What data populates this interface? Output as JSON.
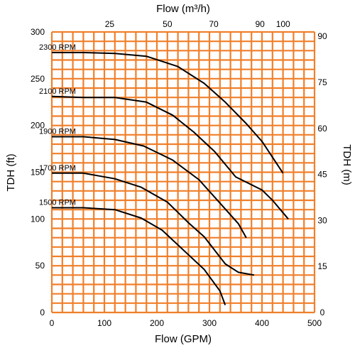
{
  "chart_data": {
    "type": "line",
    "title": "",
    "xlabel": "Flow (GPM)",
    "ylabel": "TDH (ft)",
    "x2label": "Flow (m³/h)",
    "y2label": "TDH (m)",
    "xlim": [
      0,
      500
    ],
    "ylim": [
      0,
      300
    ],
    "x2lim": [
      0,
      113.6
    ],
    "y2lim": [
      0,
      91.44
    ],
    "grid": true,
    "grid_color": "#f07f2a",
    "line_color": "#000000",
    "x_ticks": [
      "0",
      "100",
      "200",
      "300",
      "400",
      "500"
    ],
    "y_ticks": [
      "0",
      "50",
      "100",
      "150",
      "200",
      "250",
      "300"
    ],
    "x2_ticks": [
      {
        "value": 25,
        "label": "25"
      },
      {
        "value": 50,
        "label": "50"
      },
      {
        "value": 70,
        "label": "70"
      },
      {
        "value": 90,
        "label": "90"
      },
      {
        "value": 100,
        "label": "100"
      }
    ],
    "y2_ticks": [
      {
        "value": 0,
        "label": "0"
      },
      {
        "value": 15,
        "label": "15"
      },
      {
        "value": 30,
        "label": "30"
      },
      {
        "value": 45,
        "label": "45"
      },
      {
        "value": 60,
        "label": "60"
      },
      {
        "value": 75,
        "label": "75"
      },
      {
        "value": 90,
        "label": "90"
      }
    ],
    "series": [
      {
        "name": "2300 RPM",
        "x": [
          0,
          60,
          120,
          180,
          240,
          290,
          330,
          370,
          400,
          420,
          440
        ],
        "y": [
          278,
          278,
          277,
          274,
          263,
          245,
          225,
          202,
          183,
          166,
          149
        ]
      },
      {
        "name": "2100 RPM",
        "x": [
          0,
          60,
          120,
          180,
          230,
          270,
          310,
          350,
          400,
          420,
          450
        ],
        "y": [
          231,
          230,
          230,
          225,
          211,
          193,
          172,
          145,
          131,
          120,
          100
        ]
      },
      {
        "name": "1900 RPM",
        "x": [
          0,
          60,
          120,
          175,
          230,
          280,
          320,
          355,
          370
        ],
        "y": [
          188,
          188,
          185,
          178,
          163,
          142,
          117,
          95,
          80
        ]
      },
      {
        "name": "1700 RPM",
        "x": [
          0,
          60,
          120,
          170,
          220,
          260,
          290,
          330,
          355,
          385
        ],
        "y": [
          149,
          149,
          143,
          134,
          118,
          96,
          81,
          52,
          43,
          40
        ]
      },
      {
        "name": "1500 RPM",
        "x": [
          0,
          60,
          120,
          170,
          210,
          250,
          290,
          320,
          330
        ],
        "y": [
          112,
          112,
          110,
          101,
          88,
          67,
          46,
          23,
          8
        ]
      }
    ]
  }
}
